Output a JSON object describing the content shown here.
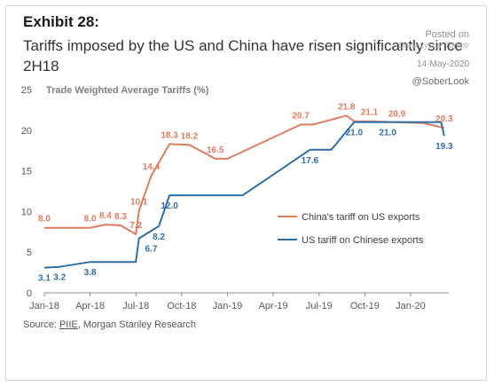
{
  "header": {
    "exhibit": "Exhibit 28:",
    "subtitle": "Tariffs imposed by the US and China have risen significantly since 2H18"
  },
  "watermark": {
    "posted": "Posted on",
    "via": "Dana Lyons' Tumblr",
    "date": "14-May-2020",
    "handle": "@SoberLook"
  },
  "source": {
    "prefix": "Source: ",
    "link": "PIIE",
    "rest": ", Morgan Stanley Research"
  },
  "chart_data": {
    "type": "line",
    "title": "Trade Weighted Average Tariffs (%)",
    "ylim": [
      0,
      25
    ],
    "yticks": [
      0,
      5,
      10,
      15,
      20,
      25
    ],
    "xlim": [
      0,
      26.5
    ],
    "xticks": [
      {
        "x": 0,
        "label": "Jan-18"
      },
      {
        "x": 3,
        "label": "Apr-18"
      },
      {
        "x": 6,
        "label": "Jul-18"
      },
      {
        "x": 9,
        "label": "Oct-18"
      },
      {
        "x": 12,
        "label": "Jan-19"
      },
      {
        "x": 15,
        "label": "Apr-19"
      },
      {
        "x": 18,
        "label": "Jul-19"
      },
      {
        "x": 21,
        "label": "Oct-19"
      },
      {
        "x": 24,
        "label": "Jan-20"
      }
    ],
    "grid": false,
    "legend_position": "center-right",
    "series": [
      {
        "name": "China's tariff on US exports",
        "color": "#e07b5c",
        "points": [
          [
            0,
            8.0
          ],
          [
            3,
            8.0
          ],
          [
            4,
            8.4
          ],
          [
            5,
            8.3
          ],
          [
            6,
            7.2
          ],
          [
            6.2,
            10.1
          ],
          [
            7,
            14.4
          ],
          [
            8.2,
            18.3
          ],
          [
            9.5,
            18.2
          ],
          [
            11.2,
            16.5
          ],
          [
            12,
            16.5
          ],
          [
            16.8,
            20.7
          ],
          [
            17.6,
            20.7
          ],
          [
            19.8,
            21.8
          ],
          [
            20.3,
            21.1
          ],
          [
            21.3,
            21.1
          ],
          [
            24.8,
            20.9
          ],
          [
            26.2,
            20.3
          ]
        ],
        "labels": [
          {
            "x": 0,
            "y": 8.0,
            "text": "8.0"
          },
          {
            "x": 3,
            "y": 8.0,
            "text": "8.0"
          },
          {
            "x": 4,
            "y": 8.4,
            "text": "8.4"
          },
          {
            "x": 5,
            "y": 8.3,
            "text": "8.3"
          },
          {
            "x": 6,
            "y": 7.2,
            "text": "7.2"
          },
          {
            "x": 6.2,
            "y": 10.1,
            "text": "10.1"
          },
          {
            "x": 7,
            "y": 14.4,
            "text": "14.4"
          },
          {
            "x": 8.2,
            "y": 18.3,
            "text": "18.3"
          },
          {
            "x": 9.5,
            "y": 18.2,
            "text": "18.2"
          },
          {
            "x": 11.2,
            "y": 16.5,
            "text": "16.5"
          },
          {
            "x": 16.8,
            "y": 20.7,
            "text": "20.7"
          },
          {
            "x": 19.8,
            "y": 21.8,
            "text": "21.8"
          },
          {
            "x": 21.3,
            "y": 21.1,
            "text": "21.1"
          },
          {
            "x": 23.1,
            "y": 20.9,
            "text": "20.9"
          },
          {
            "x": 26.2,
            "y": 20.3,
            "text": "20.3"
          }
        ]
      },
      {
        "name": "US tariff on Chinese exports",
        "color": "#2e6ea6",
        "points": [
          [
            0,
            3.1
          ],
          [
            1,
            3.2
          ],
          [
            3,
            3.8
          ],
          [
            6,
            3.8
          ],
          [
            6.2,
            6.7
          ],
          [
            7.5,
            8.2
          ],
          [
            8.2,
            12.0
          ],
          [
            13,
            12.0
          ],
          [
            17.4,
            17.6
          ],
          [
            18.8,
            17.6
          ],
          [
            20.3,
            21.0
          ],
          [
            26,
            21.0
          ],
          [
            26.2,
            19.3
          ]
        ],
        "labels": [
          {
            "x": 0,
            "y": 3.1,
            "text": "3.1"
          },
          {
            "x": 1,
            "y": 3.2,
            "text": "3.2"
          },
          {
            "x": 3,
            "y": 3.8,
            "text": "3.8"
          },
          {
            "x": 7,
            "y": 6.7,
            "text": "6.7"
          },
          {
            "x": 7.5,
            "y": 8.2,
            "text": "8.2"
          },
          {
            "x": 8.2,
            "y": 12.0,
            "text": "12.0"
          },
          {
            "x": 17.4,
            "y": 17.6,
            "text": "17.6"
          },
          {
            "x": 20.3,
            "y": 21.0,
            "text": "21.0"
          },
          {
            "x": 22.5,
            "y": 21.0,
            "text": "21.0"
          },
          {
            "x": 26.2,
            "y": 19.3,
            "text": "19.3"
          }
        ]
      }
    ]
  }
}
